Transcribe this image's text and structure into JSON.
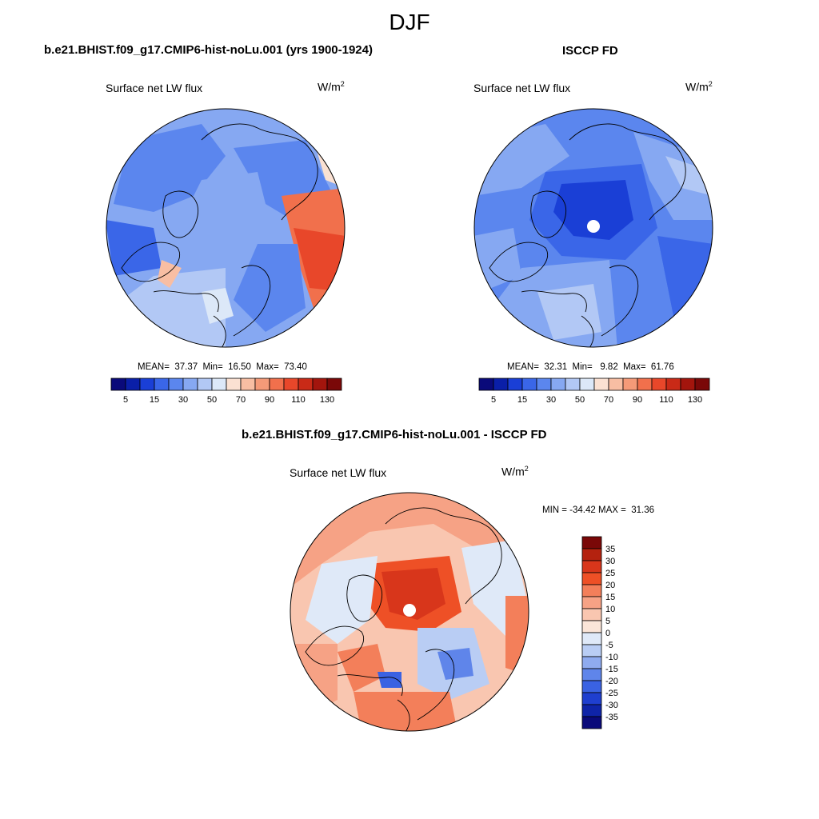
{
  "title": "DJF",
  "panels": [
    {
      "id": "model",
      "title": "b.e21.BHIST.f09_g17.CMIP6-hist-noLu.001 (yrs 1900-1924)",
      "variable": "Surface net LW flux",
      "units": "W/m",
      "units_sup": "2",
      "stats": "MEAN=  37.37  Min=  16.50  Max=  73.40",
      "mean": 37.37,
      "min": 16.5,
      "max": 73.4
    },
    {
      "id": "obs",
      "title": "ISCCP FD",
      "variable": "Surface net LW flux",
      "units": "W/m",
      "units_sup": "2",
      "stats": "MEAN=  32.31  Min=   9.82  Max=  61.76",
      "mean": 32.31,
      "min": 9.82,
      "max": 61.76
    },
    {
      "id": "diff",
      "title": "b.e21.BHIST.f09_g17.CMIP6-hist-noLu.001 - ISCCP FD",
      "variable": "Surface net LW flux",
      "units": "W/m",
      "units_sup": "2",
      "stats": "MIN = -34.42 MAX =  31.36",
      "min": -34.42,
      "max": 31.36
    }
  ],
  "colorbar_field": {
    "tick_labels": [
      "5",
      "15",
      "30",
      "50",
      "70",
      "90",
      "110",
      "130"
    ],
    "colors": [
      "#0a0a7a",
      "#0a1fa8",
      "#1a3fd6",
      "#3a66e8",
      "#5b86ee",
      "#86a8f2",
      "#b2c8f5",
      "#dce8f8",
      "#fbe1d2",
      "#f8bea3",
      "#f59a78",
      "#f1704c",
      "#e8472a",
      "#c92a17",
      "#a3150d",
      "#7a0808"
    ]
  },
  "colorbar_diff": {
    "tick_labels": [
      "35",
      "30",
      "25",
      "20",
      "15",
      "10",
      "5",
      "0",
      "-5",
      "-10",
      "-15",
      "-20",
      "-25",
      "-30",
      "-35"
    ],
    "colors": [
      "#7a0808",
      "#b4220f",
      "#d8361b",
      "#ee5026",
      "#f37f5a",
      "#f6a285",
      "#f9c6b0",
      "#fbe5d8",
      "#dfe9f8",
      "#b9cdf4",
      "#8fabef",
      "#5f85ea",
      "#3a62e2",
      "#1f3fcf",
      "#0f24a8",
      "#0a0a7a"
    ]
  },
  "map_fill": {
    "model_base": "#5f8fec",
    "obs_base": "#5f8fec",
    "diff_base": "#f9c4ae"
  }
}
